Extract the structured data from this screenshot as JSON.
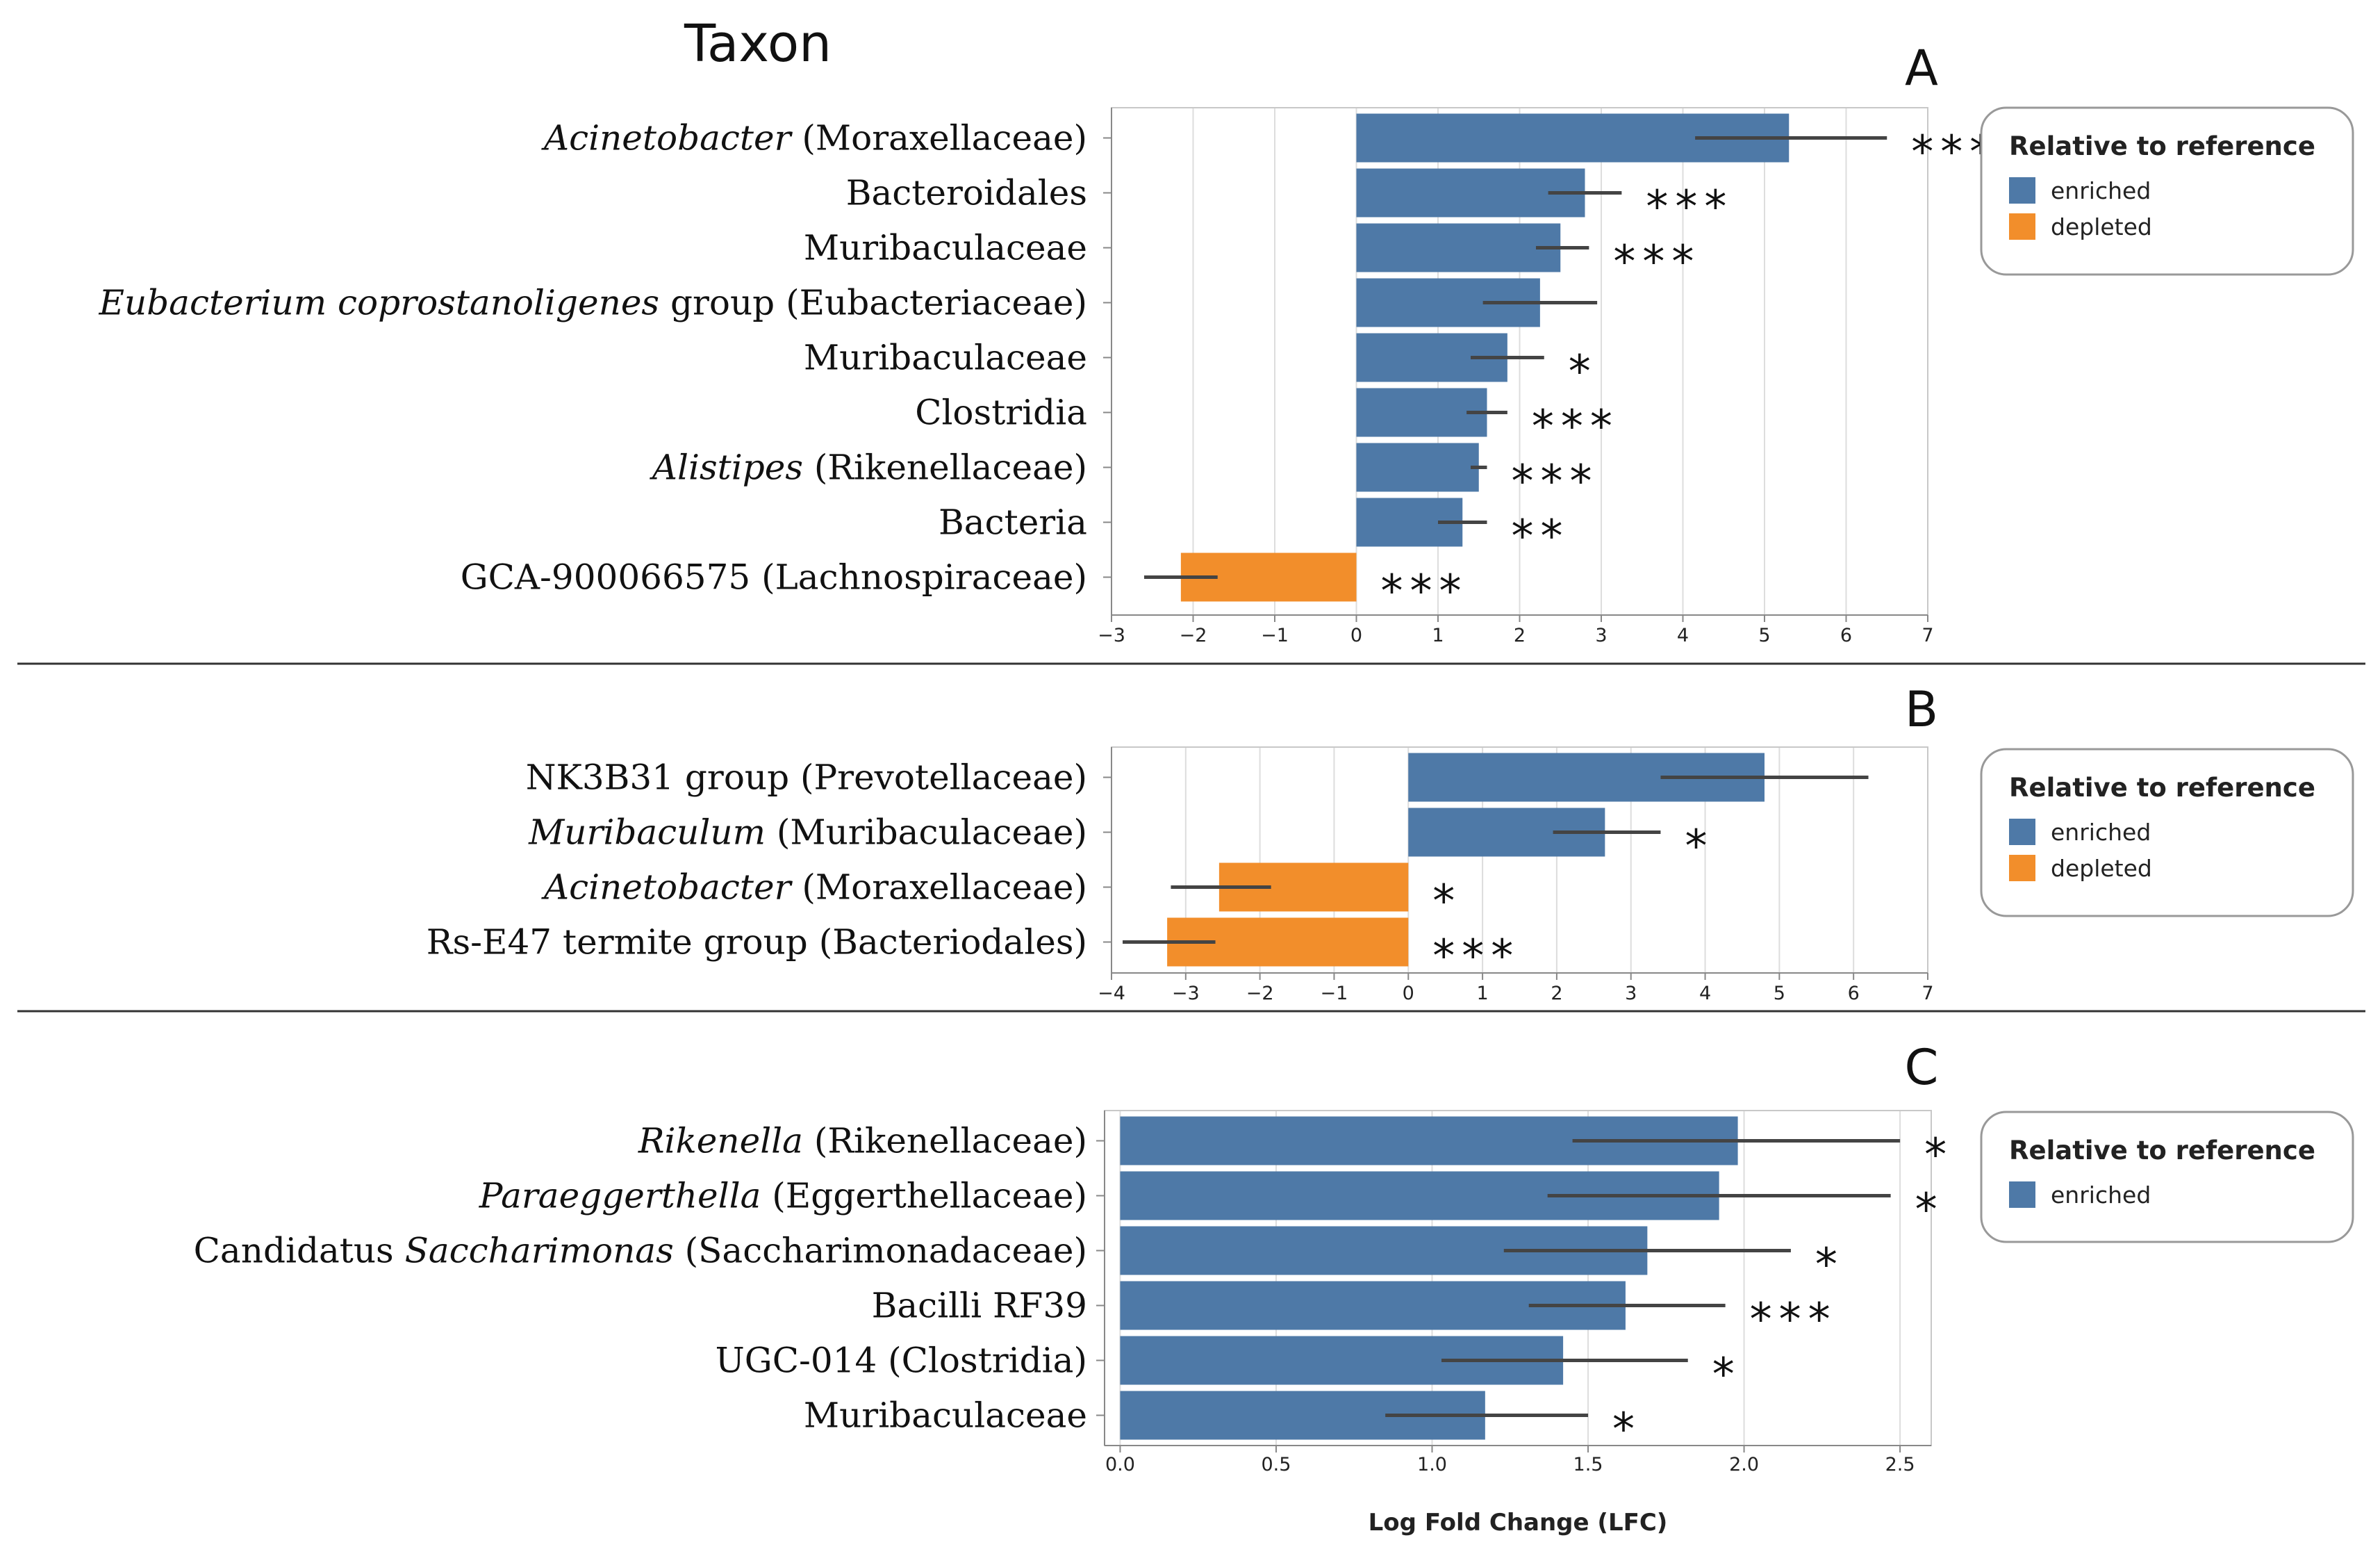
{
  "figure": {
    "title": "Taxon",
    "xlabel": "Log Fold Change (LFC)"
  },
  "colors": {
    "enriched": "#4e79a7",
    "depleted": "#f28e2b",
    "grid": "#dddddd",
    "error": "#444444"
  },
  "chart_data": [
    {
      "panel": "A",
      "type": "bar",
      "orientation": "horizontal",
      "xlim": [
        -3,
        7
      ],
      "xticks": [
        -3,
        -2,
        -1,
        0,
        1,
        2,
        3,
        4,
        5,
        6,
        7
      ],
      "legend": {
        "title": "Relative to reference",
        "items": [
          {
            "label": "enriched",
            "color": "#4e79a7"
          },
          {
            "label": "depleted",
            "color": "#f28e2b"
          }
        ]
      },
      "rows": [
        {
          "label": [
            {
              "t": "Acinetobacter",
              "i": true
            },
            {
              "t": " (Moraxellaceae)",
              "i": false
            }
          ],
          "value": 5.3,
          "lo": 4.15,
          "hi": 6.5,
          "status": "enriched",
          "sig": "***"
        },
        {
          "label": [
            {
              "t": "Bacteroidales",
              "i": false
            }
          ],
          "value": 2.8,
          "lo": 2.35,
          "hi": 3.25,
          "status": "enriched",
          "sig": "***"
        },
        {
          "label": [
            {
              "t": "Muribaculaceae",
              "i": false
            }
          ],
          "value": 2.5,
          "lo": 2.2,
          "hi": 2.85,
          "status": "enriched",
          "sig": "***"
        },
        {
          "label": [
            {
              "t": "Eubacterium coprostanoligenes",
              "i": true
            },
            {
              "t": " group (Eubacteriaceae)",
              "i": false
            }
          ],
          "value": 2.25,
          "lo": 1.55,
          "hi": 2.95,
          "status": "enriched",
          "sig": ""
        },
        {
          "label": [
            {
              "t": "Muribaculaceae",
              "i": false
            }
          ],
          "value": 1.85,
          "lo": 1.4,
          "hi": 2.3,
          "status": "enriched",
          "sig": "*"
        },
        {
          "label": [
            {
              "t": "Clostridia",
              "i": false
            }
          ],
          "value": 1.6,
          "lo": 1.35,
          "hi": 1.85,
          "status": "enriched",
          "sig": "***"
        },
        {
          "label": [
            {
              "t": "Alistipes",
              "i": true
            },
            {
              "t": " (Rikenellaceae)",
              "i": false
            }
          ],
          "value": 1.5,
          "lo": 1.4,
          "hi": 1.6,
          "status": "enriched",
          "sig": "***"
        },
        {
          "label": [
            {
              "t": "Bacteria",
              "i": false
            }
          ],
          "value": 1.3,
          "lo": 1.0,
          "hi": 1.6,
          "status": "enriched",
          "sig": "**"
        },
        {
          "label": [
            {
              "t": "GCA-900066575 (Lachnospiraceae)",
              "i": false
            }
          ],
          "value": -2.15,
          "lo": -2.6,
          "hi": -1.7,
          "status": "depleted",
          "sig": "***"
        }
      ]
    },
    {
      "panel": "B",
      "type": "bar",
      "orientation": "horizontal",
      "xlim": [
        -4,
        7
      ],
      "xticks": [
        -4,
        -3,
        -2,
        -1,
        0,
        1,
        2,
        3,
        4,
        5,
        6,
        7
      ],
      "legend": {
        "title": "Relative to reference",
        "items": [
          {
            "label": "enriched",
            "color": "#4e79a7"
          },
          {
            "label": "depleted",
            "color": "#f28e2b"
          }
        ]
      },
      "rows": [
        {
          "label": [
            {
              "t": "NK3B31 group (Prevotellaceae)",
              "i": false
            }
          ],
          "value": 4.8,
          "lo": 3.4,
          "hi": 6.2,
          "status": "enriched",
          "sig": ""
        },
        {
          "label": [
            {
              "t": "Muribaculum",
              "i": true
            },
            {
              "t": " (Muribaculaceae)",
              "i": false
            }
          ],
          "value": 2.65,
          "lo": 1.95,
          "hi": 3.4,
          "status": "enriched",
          "sig": "*"
        },
        {
          "label": [
            {
              "t": "Acinetobacter",
              "i": true
            },
            {
              "t": " (Moraxellaceae)",
              "i": false
            }
          ],
          "value": -2.55,
          "lo": -3.2,
          "hi": -1.85,
          "status": "depleted",
          "sig": "*"
        },
        {
          "label": [
            {
              "t": "Rs-E47 termite group (Bacteriodales)",
              "i": false
            }
          ],
          "value": -3.25,
          "lo": -3.85,
          "hi": -2.6,
          "status": "depleted",
          "sig": "***"
        }
      ]
    },
    {
      "panel": "C",
      "type": "bar",
      "orientation": "horizontal",
      "xlim": [
        -0.05,
        2.6
      ],
      "xticks": [
        "0.0",
        "0.5",
        "1.0",
        "1.5",
        "2.0",
        "2.5"
      ],
      "legend": {
        "title": "Relative to reference",
        "items": [
          {
            "label": "enriched",
            "color": "#4e79a7"
          }
        ]
      },
      "rows": [
        {
          "label": [
            {
              "t": "Rikenella",
              "i": true
            },
            {
              "t": " (Rikenellaceae)",
              "i": false
            }
          ],
          "value": 1.98,
          "lo": 1.45,
          "hi": 2.5,
          "status": "enriched",
          "sig": "*"
        },
        {
          "label": [
            {
              "t": "Paraeggerthella",
              "i": true
            },
            {
              "t": " (Eggerthellaceae)",
              "i": false
            }
          ],
          "value": 1.92,
          "lo": 1.37,
          "hi": 2.47,
          "status": "enriched",
          "sig": "*"
        },
        {
          "label": [
            {
              "t": "Candidatus ",
              "i": false
            },
            {
              "t": "Saccharimonas",
              "i": true
            },
            {
              "t": " (Saccharimonadaceae)",
              "i": false
            }
          ],
          "value": 1.69,
          "lo": 1.23,
          "hi": 2.15,
          "status": "enriched",
          "sig": "*"
        },
        {
          "label": [
            {
              "t": "Bacilli RF39",
              "i": false
            }
          ],
          "value": 1.62,
          "lo": 1.31,
          "hi": 1.94,
          "status": "enriched",
          "sig": "***"
        },
        {
          "label": [
            {
              "t": "UGC-014 (Clostridia)",
              "i": false
            }
          ],
          "value": 1.42,
          "lo": 1.03,
          "hi": 1.82,
          "status": "enriched",
          "sig": "*"
        },
        {
          "label": [
            {
              "t": "Muribaculaceae",
              "i": false
            }
          ],
          "value": 1.17,
          "lo": 0.85,
          "hi": 1.5,
          "status": "enriched",
          "sig": "*"
        }
      ]
    }
  ]
}
